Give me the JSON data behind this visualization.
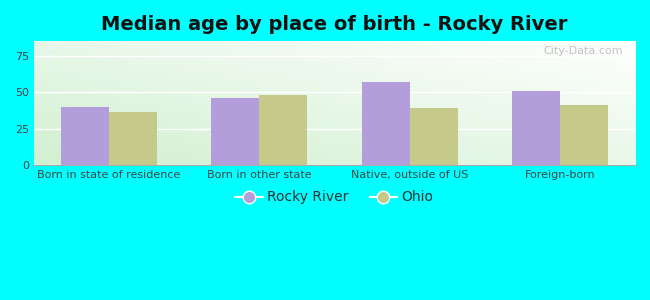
{
  "title": "Median age by place of birth - Rocky River",
  "categories": [
    "Born in state of residence",
    "Born in other state",
    "Native, outside of US",
    "Foreign-born"
  ],
  "rocky_river": [
    40,
    46,
    57,
    51
  ],
  "ohio": [
    36,
    48,
    39,
    41
  ],
  "rocky_river_color": "#b39ddb",
  "ohio_color": "#c5c98a",
  "ylim": [
    0,
    85
  ],
  "yticks": [
    0,
    25,
    50,
    75
  ],
  "legend_labels": [
    "Rocky River",
    "Ohio"
  ],
  "figure_bg_color": "#00ffff",
  "bar_width": 0.32,
  "title_fontsize": 14,
  "tick_fontsize": 8,
  "legend_fontsize": 10,
  "plot_bg_colors": [
    "#e8f5e9",
    "#ffffff"
  ],
  "watermark": "City-Data.com"
}
